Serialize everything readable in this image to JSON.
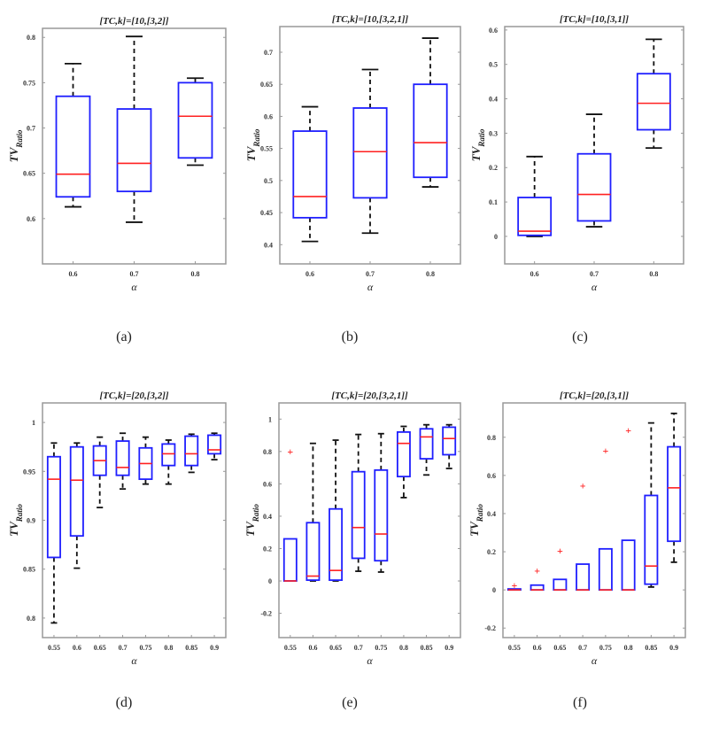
{
  "chart_data": [
    {
      "type": "box",
      "caption": "(a)",
      "title": "[TC,k]=[10,[3,2]]",
      "xlabel": "α",
      "ylabel": "TV",
      "ylabel_sub": "Ratio",
      "categories": [
        "0.6",
        "0.7",
        "0.8"
      ],
      "ylim": [
        0.55,
        0.81
      ],
      "yticks": [
        0.6,
        0.65,
        0.7,
        0.75,
        0.8
      ],
      "boxes": [
        [
          0.613,
          0.624,
          0.649,
          0.735,
          0.771
        ],
        [
          0.596,
          0.63,
          0.661,
          0.721,
          0.801
        ],
        [
          0.659,
          0.667,
          0.713,
          0.75,
          0.755
        ]
      ],
      "outliers": [
        [],
        [],
        []
      ]
    },
    {
      "type": "box",
      "caption": "(b)",
      "title": "[TC,k]=[10,[3,2,1]]",
      "xlabel": "α",
      "ylabel": "TV",
      "ylabel_sub": "Ratio",
      "categories": [
        "0.6",
        "0.7",
        "0.8"
      ],
      "ylim": [
        0.37,
        0.74
      ],
      "yticks": [
        0.4,
        0.45,
        0.5,
        0.55,
        0.6,
        0.65,
        0.7
      ],
      "boxes": [
        [
          0.405,
          0.442,
          0.475,
          0.577,
          0.615
        ],
        [
          0.418,
          0.473,
          0.545,
          0.613,
          0.673
        ],
        [
          0.49,
          0.505,
          0.559,
          0.65,
          0.722
        ]
      ],
      "outliers": [
        [],
        [],
        []
      ]
    },
    {
      "type": "box",
      "caption": "(c)",
      "title": "[TC,k]=[10,[3,1]]",
      "xlabel": "α",
      "ylabel": "TV",
      "ylabel_sub": "Ratio",
      "categories": [
        "0.6",
        "0.7",
        "0.8"
      ],
      "ylim": [
        -0.08,
        0.61
      ],
      "yticks": [
        0,
        0.1,
        0.2,
        0.3,
        0.4,
        0.5,
        0.6
      ],
      "boxes": [
        [
          0.0,
          0.003,
          0.015,
          0.113,
          0.232
        ],
        [
          0.028,
          0.045,
          0.122,
          0.24,
          0.355
        ],
        [
          0.257,
          0.31,
          0.387,
          0.473,
          0.573
        ]
      ],
      "outliers": [
        [],
        [],
        []
      ]
    },
    {
      "type": "box",
      "caption": "(d)",
      "title": "[TC,k]=[20,[3,2]]",
      "xlabel": "α",
      "ylabel": "TV",
      "ylabel_sub": "Ratio",
      "categories": [
        "0.55",
        "0.6",
        "0.65",
        "0.7",
        "0.75",
        "0.8",
        "0.85",
        "0.9"
      ],
      "ylim": [
        0.78,
        1.02
      ],
      "yticks": [
        0.8,
        0.85,
        0.9,
        0.95,
        1
      ],
      "boxes": [
        [
          0.795,
          0.862,
          0.942,
          0.965,
          0.979
        ],
        [
          0.851,
          0.884,
          0.941,
          0.975,
          0.979
        ],
        [
          0.913,
          0.946,
          0.961,
          0.976,
          0.985
        ],
        [
          0.932,
          0.946,
          0.954,
          0.981,
          0.989
        ],
        [
          0.937,
          0.942,
          0.958,
          0.974,
          0.985
        ],
        [
          0.937,
          0.956,
          0.968,
          0.978,
          0.982
        ],
        [
          0.949,
          0.956,
          0.968,
          0.986,
          0.988
        ],
        [
          0.962,
          0.968,
          0.972,
          0.987,
          0.989
        ]
      ],
      "outliers": [
        [],
        [],
        [],
        [],
        [],
        [],
        [],
        []
      ]
    },
    {
      "type": "box",
      "caption": "(e)",
      "title": "[TC,k]=[20,[3,2,1]]",
      "xlabel": "α",
      "ylabel": "TV",
      "ylabel_sub": "Ratio",
      "categories": [
        "0.55",
        "0.6",
        "0.65",
        "0.7",
        "0.75",
        "0.8",
        "0.85",
        "0.9"
      ],
      "ylim": [
        -0.35,
        1.1
      ],
      "yticks": [
        -0.2,
        0,
        0.2,
        0.4,
        0.6,
        0.8,
        1
      ],
      "boxes": [
        [
          0,
          0,
          0,
          0.26,
          0.26
        ],
        [
          0,
          0.005,
          0.03,
          0.36,
          0.85
        ],
        [
          0,
          0.005,
          0.065,
          0.445,
          0.87
        ],
        [
          0.06,
          0.14,
          0.33,
          0.675,
          0.905
        ],
        [
          0.055,
          0.125,
          0.29,
          0.685,
          0.91
        ],
        [
          0.515,
          0.645,
          0.85,
          0.92,
          0.955
        ],
        [
          0.655,
          0.755,
          0.89,
          0.94,
          0.965
        ],
        [
          0.695,
          0.78,
          0.88,
          0.95,
          0.965
        ]
      ],
      "outliers": [
        [
          0.8
        ],
        [],
        [],
        [],
        [],
        [],
        [],
        []
      ]
    },
    {
      "type": "box",
      "caption": "(f)",
      "title": "[TC,k]=[20,[3,1]]",
      "xlabel": "α",
      "ylabel": "TV",
      "ylabel_sub": "Ratio",
      "categories": [
        "0.55",
        "0.6",
        "0.65",
        "0.7",
        "0.75",
        "0.8",
        "0.85",
        "0.9"
      ],
      "ylim": [
        -0.25,
        0.98
      ],
      "yticks": [
        -0.2,
        0,
        0.2,
        0.4,
        0.6,
        0.8
      ],
      "boxes": [
        [
          0,
          0,
          0,
          0.005,
          0.005
        ],
        [
          0,
          0,
          0,
          0.025,
          0.025
        ],
        [
          0,
          0,
          0,
          0.055,
          0.055
        ],
        [
          0,
          0,
          0,
          0.135,
          0.135
        ],
        [
          0,
          0,
          0,
          0.215,
          0.215
        ],
        [
          0,
          0,
          0,
          0.26,
          0.26
        ],
        [
          0.015,
          0.03,
          0.125,
          0.495,
          0.875
        ],
        [
          0.145,
          0.255,
          0.535,
          0.75,
          0.925
        ]
      ],
      "outliers": [
        [
          0.025
        ],
        [
          0.1
        ],
        [
          0.205
        ],
        [
          0.545
        ],
        [
          0.73
        ],
        [
          0.835
        ],
        [],
        []
      ]
    }
  ],
  "colors": {
    "box": "#1f1fff",
    "median": "#ff2020",
    "whisker": "#111111",
    "outlier": "#ff2020",
    "frame": "#999999"
  }
}
